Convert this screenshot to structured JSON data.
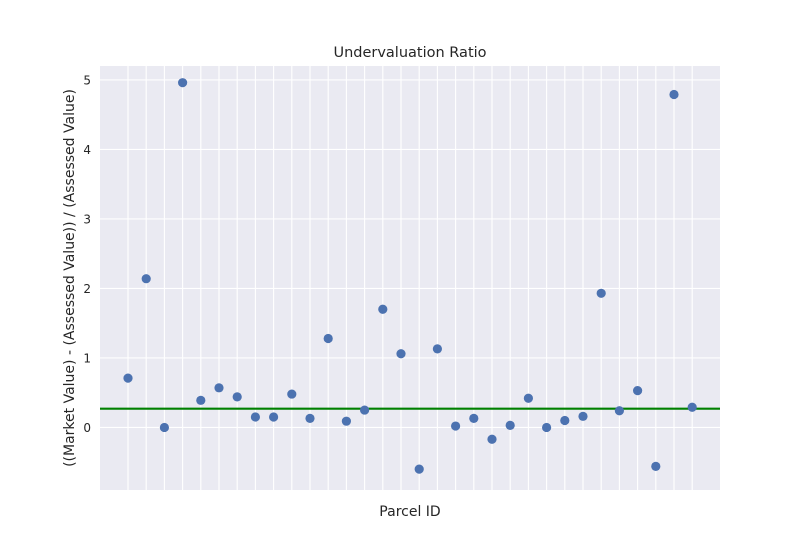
{
  "chart_data": {
    "type": "scatter",
    "title": "Undervaluation Ratio",
    "xlabel": "Parcel ID",
    "ylabel": "((Market Value) - (Assessed Value)) / (Assessed Value)",
    "ylim": [
      -0.9,
      5.2
    ],
    "yticks": [
      0,
      1,
      2,
      3,
      4,
      5
    ],
    "x_tick_labels_shown": false,
    "grid": true,
    "legend": "none",
    "points": [
      0.71,
      2.14,
      0.0,
      4.96,
      0.39,
      0.57,
      0.44,
      0.15,
      0.15,
      0.48,
      0.13,
      1.28,
      0.09,
      0.25,
      1.7,
      1.06,
      -0.6,
      1.13,
      0.02,
      0.13,
      -0.17,
      0.03,
      0.42,
      0.0,
      0.1,
      0.16,
      1.93,
      0.24,
      0.53,
      -0.56,
      4.79,
      0.29
    ],
    "reference_line": {
      "y": 0.27,
      "color": "#008000"
    },
    "colors": {
      "point": "#4c72b0",
      "plot_background": "#eaeaf2",
      "grid": "#ffffff",
      "text": "#262626"
    }
  }
}
